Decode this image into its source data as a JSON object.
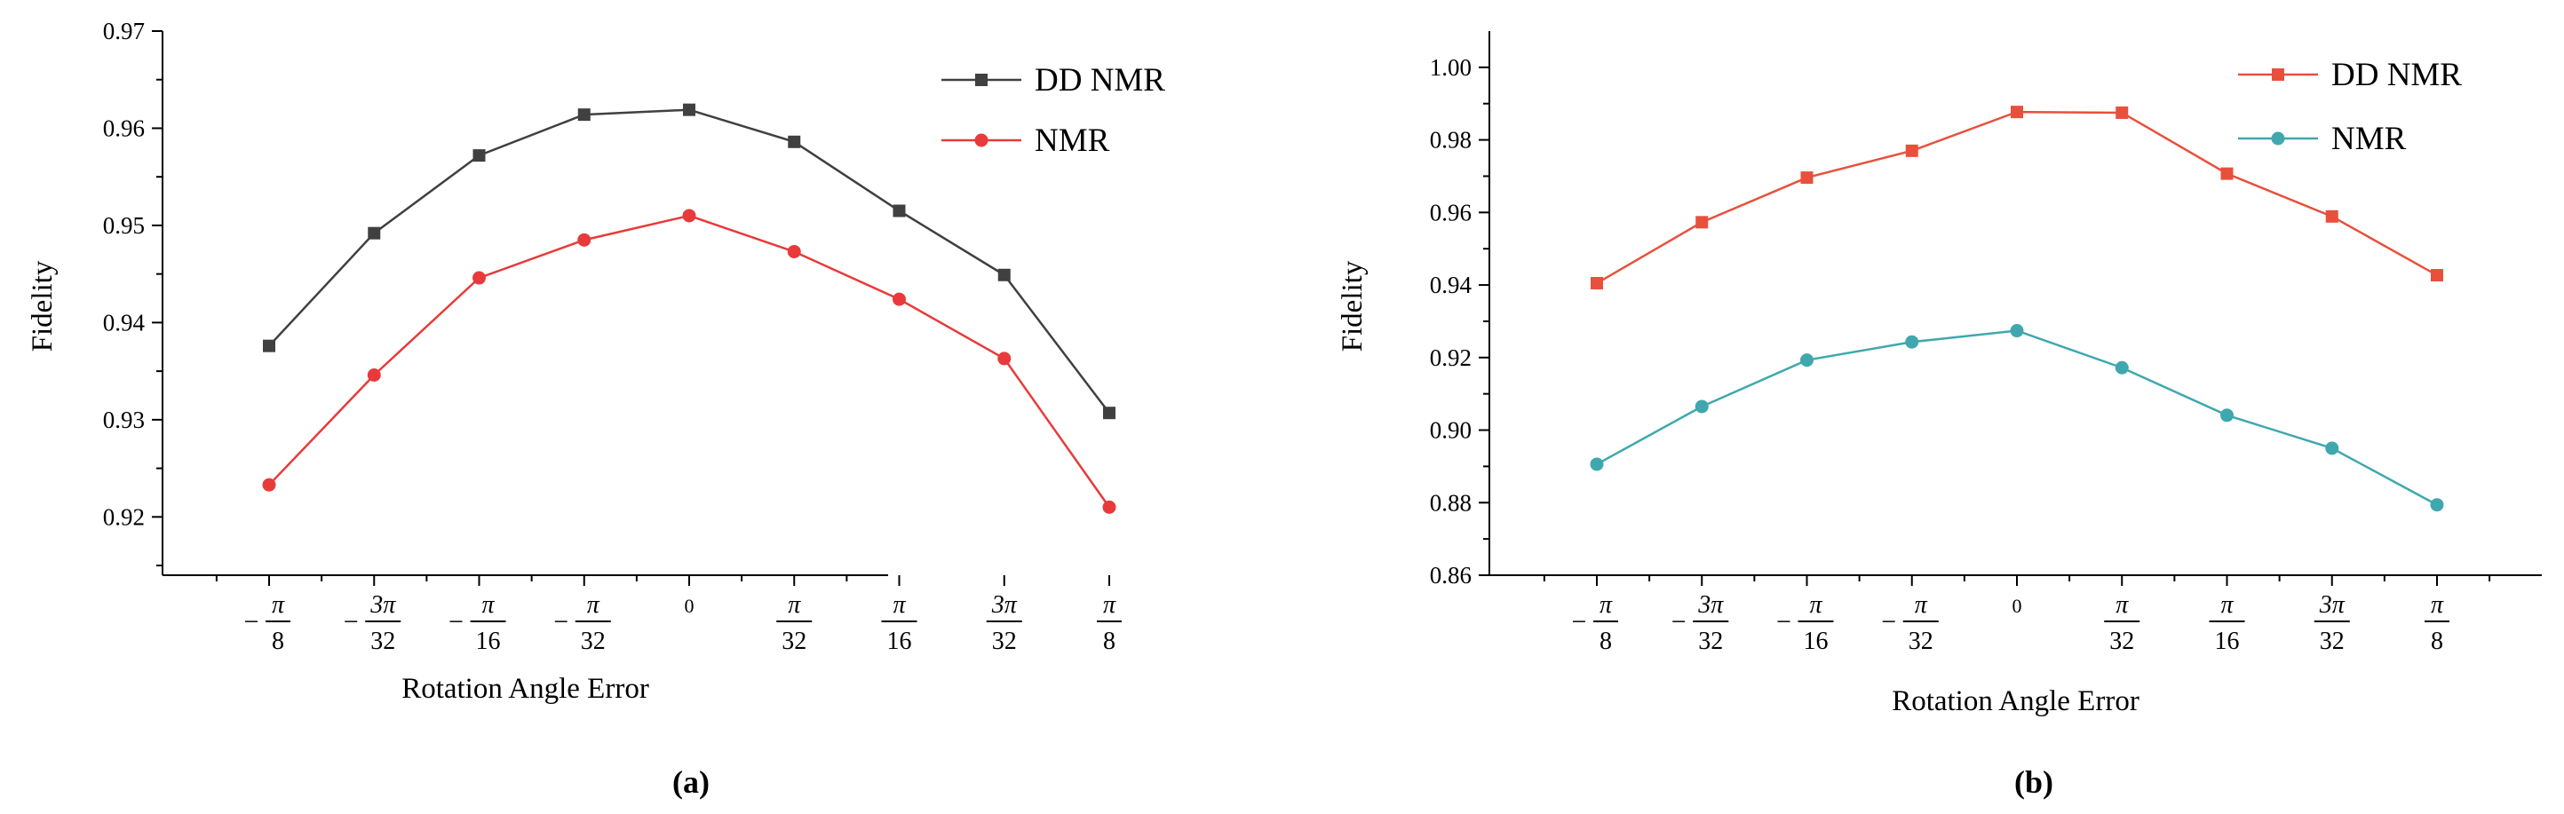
{
  "chart_data": [
    {
      "type": "line",
      "panel_label": "(a)",
      "title": "",
      "xlabel": "Rotation Angle Error",
      "ylabel": "Fidelity",
      "categories": [
        "−π/8",
        "−3π/32",
        "−π/16",
        "−π/32",
        "0",
        "π/32",
        "π/16",
        "3π/32",
        "π/8"
      ],
      "ylim": [
        0.914,
        0.97
      ],
      "yticks": [
        "0.92",
        "0.93",
        "0.94",
        "0.95",
        "0.96",
        "0.97"
      ],
      "ytick_values": [
        0.92,
        0.93,
        0.94,
        0.95,
        0.96,
        0.97
      ],
      "legend_position": "top-right",
      "series": [
        {
          "name": "DD NMR",
          "color": "#404040",
          "marker": "square",
          "values": [
            0.9376,
            0.9492,
            0.9572,
            0.9614,
            0.9619,
            0.9586,
            0.9515,
            0.9449,
            0.9307
          ]
        },
        {
          "name": "NMR",
          "color": "#e83a3a",
          "marker": "circle",
          "values": [
            0.9233,
            0.9346,
            0.9446,
            0.9485,
            0.951,
            0.9473,
            0.9424,
            0.9363,
            0.921
          ]
        }
      ]
    },
    {
      "type": "line",
      "panel_label": "(b)",
      "title": "",
      "xlabel": "Rotation Angle Error",
      "ylabel": "Fidelity",
      "categories": [
        "−π/8",
        "−3π/32",
        "−π/16",
        "−π/32",
        "0",
        "π/32",
        "π/16",
        "3π/32",
        "π/8"
      ],
      "ylim": [
        0.86,
        1.01
      ],
      "yticks": [
        "0.86",
        "0.88",
        "0.90",
        "0.92",
        "0.94",
        "0.96",
        "0.98",
        "1.00"
      ],
      "ytick_values": [
        0.86,
        0.88,
        0.9,
        0.92,
        0.94,
        0.96,
        0.98,
        1.0
      ],
      "legend_position": "top-right",
      "series": [
        {
          "name": "DD NMR",
          "color": "#e8503c",
          "marker": "square",
          "values": [
            0.9405,
            0.9573,
            0.9696,
            0.977,
            0.9877,
            0.9875,
            0.9707,
            0.9589,
            0.9427
          ]
        },
        {
          "name": "NMR",
          "color": "#3fa8ae",
          "marker": "circle",
          "values": [
            0.8906,
            0.9065,
            0.9193,
            0.9243,
            0.9274,
            0.9172,
            0.9041,
            0.895,
            0.8794
          ]
        }
      ]
    }
  ]
}
